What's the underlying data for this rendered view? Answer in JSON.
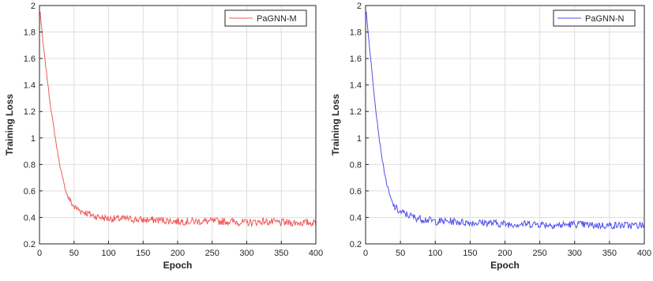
{
  "chart_data": [
    {
      "type": "line",
      "xlabel": "Epoch",
      "ylabel": "Training Loss",
      "xlim": [
        0,
        400
      ],
      "ylim": [
        0.2,
        2
      ],
      "xticks": [
        0,
        50,
        100,
        150,
        200,
        250,
        300,
        350,
        400
      ],
      "yticks": [
        0.2,
        0.4,
        0.6,
        0.8,
        1,
        1.2,
        1.4,
        1.6,
        1.8,
        2
      ],
      "grid": true,
      "legend_position": "top-right",
      "series": [
        {
          "name": "PaGNN-M",
          "color": "#f05a5a",
          "x": [
            1,
            5,
            10,
            15,
            20,
            25,
            30,
            35,
            40,
            45,
            50,
            60,
            70,
            80,
            90,
            100,
            125,
            150,
            175,
            200,
            225,
            250,
            275,
            300,
            325,
            350,
            375,
            400
          ],
          "y": [
            1.95,
            1.72,
            1.5,
            1.28,
            1.1,
            0.93,
            0.78,
            0.66,
            0.57,
            0.52,
            0.48,
            0.45,
            0.43,
            0.41,
            0.4,
            0.39,
            0.39,
            0.38,
            0.38,
            0.37,
            0.37,
            0.37,
            0.37,
            0.36,
            0.37,
            0.36,
            0.36,
            0.36
          ]
        },
        {
          "name": "PaGNN-N",
          "color": "#4f4fef",
          "x": [
            1,
            5,
            10,
            15,
            20,
            25,
            30,
            35,
            40,
            45,
            50,
            60,
            70,
            80,
            90,
            100,
            125,
            150,
            175,
            200,
            225,
            250,
            275,
            300,
            325,
            350,
            375,
            400
          ],
          "y": [
            1.95,
            1.72,
            1.45,
            1.2,
            0.98,
            0.8,
            0.66,
            0.56,
            0.49,
            0.46,
            0.44,
            0.42,
            0.4,
            0.39,
            0.38,
            0.37,
            0.37,
            0.36,
            0.36,
            0.35,
            0.35,
            0.35,
            0.34,
            0.35,
            0.34,
            0.34,
            0.34,
            0.34
          ]
        }
      ]
    }
  ]
}
